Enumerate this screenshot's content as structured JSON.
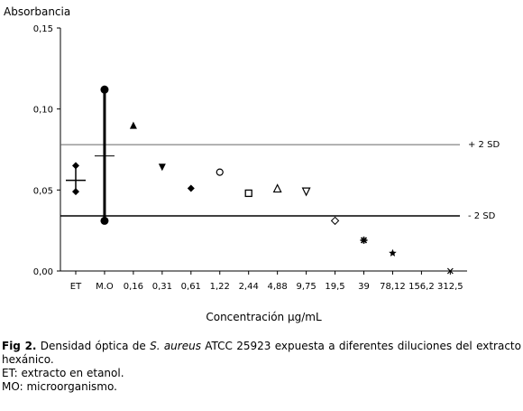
{
  "chart_data": {
    "type": "scatter",
    "ylabel": "Absorbancia",
    "xlabel": "Concentración µg/mL",
    "ylim": [
      0,
      0.15
    ],
    "yticks": [
      "0,00",
      "0,05",
      "0,10",
      "0,15"
    ],
    "categories": [
      "ET",
      "M.O",
      "0,16",
      "0,31",
      "0,61",
      "1,22",
      "2,44",
      "4,88",
      "9,75",
      "19,5",
      "39",
      "78,12",
      "156,2",
      "312,5"
    ],
    "points": [
      {
        "category": "ET",
        "value": 0.065,
        "marker": "diamond"
      },
      {
        "category": "ET",
        "value": 0.049,
        "marker": "diamond"
      },
      {
        "category": "M.O",
        "value": 0.112,
        "marker": "filled-circle"
      },
      {
        "category": "M.O",
        "value": 0.031,
        "marker": "filled-circle"
      },
      {
        "category": "0,16",
        "value": 0.09,
        "marker": "filled-triangle-up"
      },
      {
        "category": "0,31",
        "value": 0.064,
        "marker": "filled-triangle-down"
      },
      {
        "category": "0,61",
        "value": 0.051,
        "marker": "filled-diamond"
      },
      {
        "category": "1,22",
        "value": 0.061,
        "marker": "open-circle"
      },
      {
        "category": "2,44",
        "value": 0.048,
        "marker": "open-square"
      },
      {
        "category": "4,88",
        "value": 0.051,
        "marker": "open-triangle-up"
      },
      {
        "category": "9,75",
        "value": 0.049,
        "marker": "open-triangle-down"
      },
      {
        "category": "19,5",
        "value": 0.031,
        "marker": "open-diamond"
      },
      {
        "category": "39",
        "value": 0.019,
        "marker": "asterisk"
      },
      {
        "category": "78,12",
        "value": 0.011,
        "marker": "star"
      },
      {
        "category": "312,5",
        "value": 0.0,
        "marker": "cross"
      }
    ],
    "error_bars": [
      {
        "category": "ET",
        "mean": 0.056,
        "low": 0.049,
        "high": 0.065
      },
      {
        "category": "M.O",
        "mean": 0.071,
        "low": 0.031,
        "high": 0.112
      }
    ],
    "reference_lines": [
      {
        "label": "+ 2 SD",
        "value": 0.078
      },
      {
        "label": "- 2 SD",
        "value": 0.034
      }
    ],
    "grid": false
  },
  "caption": {
    "fig_label": "Fig 2.",
    "line1_before_italic": "Densidad óptica de",
    "line1_italic": "S. aureus",
    "line1_after_italic": "ATCC 25923 expuesta a diferentes diluciones del extracto hexánico.",
    "line2": "ET: extracto en etanol.",
    "line3": "MO: microorganismo."
  }
}
